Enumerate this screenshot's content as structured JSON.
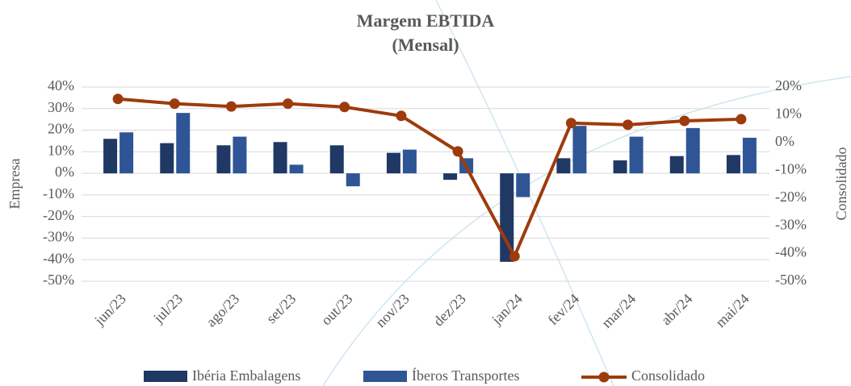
{
  "chart_data": {
    "type": "bar",
    "title": "Margem EBTIDA",
    "subtitle": "(Mensal)",
    "y_label": "Empresa",
    "y2_label": "Consolidado",
    "categories": [
      "jun/23",
      "jul/23",
      "ago/23",
      "set/23",
      "out/23",
      "nov/23",
      "dez/23",
      "jan/24",
      "fev/24",
      "mar/24",
      "abr/24",
      "mai/24"
    ],
    "series": [
      {
        "name": "Ibéria Embalagens",
        "color": "#1f3864",
        "values": [
          16,
          14,
          13,
          14.5,
          13,
          9.5,
          -3,
          -41,
          7,
          6,
          8,
          8.5
        ]
      },
      {
        "name": "Íberos Transportes",
        "color": "#2f5597",
        "values": [
          19,
          28,
          17,
          4,
          -6,
          11,
          7,
          -11,
          22,
          17,
          21,
          16.5
        ]
      },
      {
        "name": "Consolidado",
        "color": "#9e3b0c",
        "type": "line",
        "axis": "y2",
        "values": [
          15.7,
          14,
          13,
          14,
          12.8,
          9.6,
          -3.2,
          -41,
          7,
          6.4,
          7.8,
          8.4
        ]
      }
    ],
    "ylim": [
      -50,
      40
    ],
    "yticks": [
      {
        "value": -50,
        "label": "-50%"
      },
      {
        "value": -40,
        "label": "-40%"
      },
      {
        "value": -30,
        "label": "-30%"
      },
      {
        "value": -20,
        "label": "-20%"
      },
      {
        "value": -10,
        "label": "-10%"
      },
      {
        "value": 0,
        "label": "0%"
      },
      {
        "value": 10,
        "label": "10%"
      },
      {
        "value": 20,
        "label": "20%"
      },
      {
        "value": 30,
        "label": "30%"
      },
      {
        "value": 40,
        "label": "40%"
      }
    ],
    "y2lim": [
      -50,
      20
    ],
    "y2ticks": [
      {
        "value": -50,
        "label": "-50%"
      },
      {
        "value": -40,
        "label": "-40%"
      },
      {
        "value": -30,
        "label": "-30%"
      },
      {
        "value": -20,
        "label": "-20%"
      },
      {
        "value": -10,
        "label": "-10%"
      },
      {
        "value": 0,
        "label": "0%"
      },
      {
        "value": 10,
        "label": "10%"
      },
      {
        "value": 20,
        "label": "20%"
      }
    ],
    "grid": true,
    "legend": "bottom"
  }
}
